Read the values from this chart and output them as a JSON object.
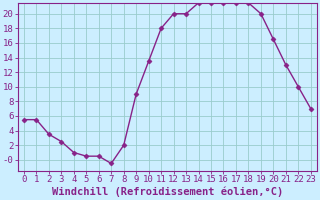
{
  "x": [
    0,
    1,
    2,
    3,
    4,
    5,
    6,
    7,
    8,
    9,
    10,
    11,
    12,
    13,
    14,
    15,
    16,
    17,
    18,
    19,
    20,
    21,
    22,
    23
  ],
  "y": [
    5.5,
    5.5,
    3.5,
    2.5,
    1.0,
    0.5,
    0.5,
    -0.5,
    2.0,
    9.0,
    13.5,
    18.0,
    20.0,
    20.0,
    21.5,
    21.5,
    21.5,
    21.5,
    21.5,
    20.0,
    16.5,
    13.0,
    10.0,
    7.0
  ],
  "line_color": "#882288",
  "marker": "D",
  "markersize": 2.5,
  "bg_color": "#cceeff",
  "grid_color": "#99cccc",
  "xlabel": "Windchill (Refroidissement éolien,°C)",
  "ylim": [
    -1.5,
    21.5
  ],
  "xlim": [
    -0.5,
    23.5
  ],
  "yticks": [
    0,
    2,
    4,
    6,
    8,
    10,
    12,
    14,
    16,
    18,
    20
  ],
  "ytick_labels": [
    "-0",
    "2",
    "4",
    "6",
    "8",
    "10",
    "12",
    "14",
    "16",
    "18",
    "20"
  ],
  "xticks": [
    0,
    1,
    2,
    3,
    4,
    5,
    6,
    7,
    8,
    9,
    10,
    11,
    12,
    13,
    14,
    15,
    16,
    17,
    18,
    19,
    20,
    21,
    22,
    23
  ],
  "tick_fontsize": 6.5,
  "xlabel_fontsize": 7.5,
  "linewidth": 1.0
}
